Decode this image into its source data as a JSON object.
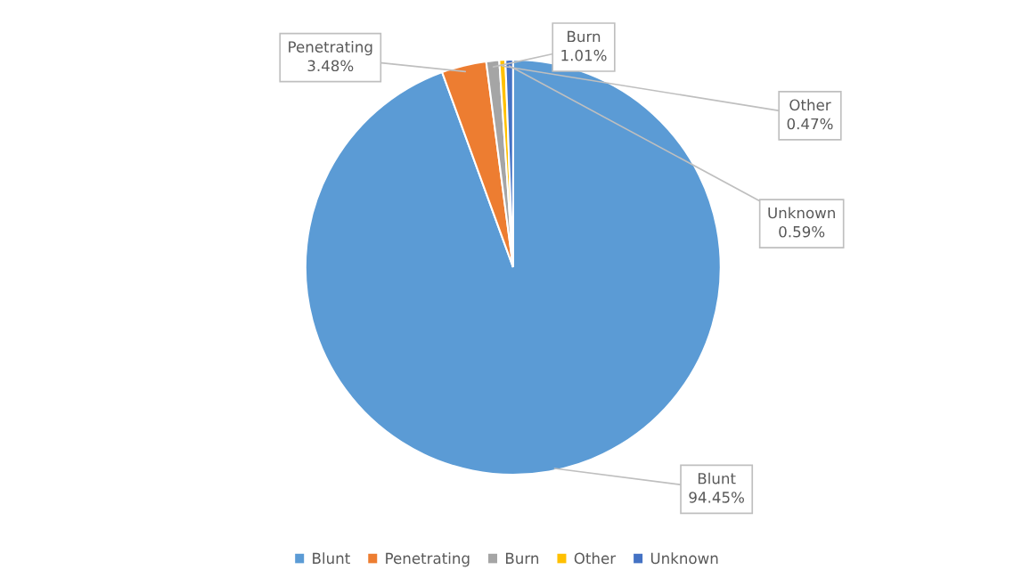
{
  "chart_data": {
    "type": "pie",
    "categories": [
      "Blunt",
      "Penetrating",
      "Burn",
      "Other",
      "Unknown"
    ],
    "values": [
      94.45,
      3.48,
      1.01,
      0.47,
      0.59
    ],
    "value_labels": [
      "94.45%",
      "3.48%",
      "1.01%",
      "0.47%",
      "0.59%"
    ],
    "colors": [
      "#5b9bd5",
      "#ed7d31",
      "#a5a5a5",
      "#ffc000",
      "#4472c4"
    ],
    "legend": "bottom"
  }
}
